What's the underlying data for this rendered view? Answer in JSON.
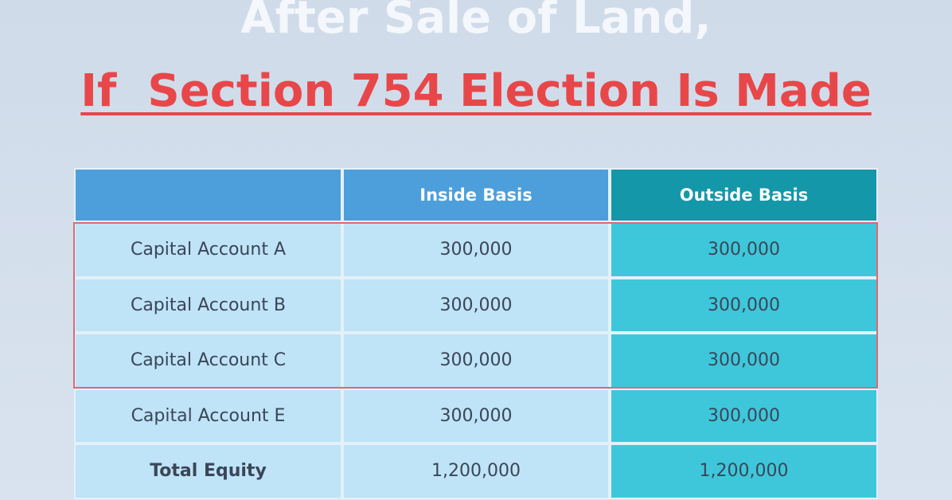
{
  "header": {
    "title": "After Sale of Land,",
    "subtitle": "If  Section 754 Election Is Made"
  },
  "table": {
    "columns": [
      "Inside Basis",
      "Outside Basis"
    ],
    "rows": [
      [
        "Capital Account A",
        "300,000",
        "300,000"
      ],
      [
        "Capital Account B",
        "300,000",
        "300,000"
      ],
      [
        "Capital Account C",
        "300,000",
        "300,000"
      ],
      [
        "Capital Account E",
        "300,000",
        "300,000"
      ],
      [
        "Total Equity",
        "1,200,000",
        "1,200,000"
      ]
    ]
  }
}
